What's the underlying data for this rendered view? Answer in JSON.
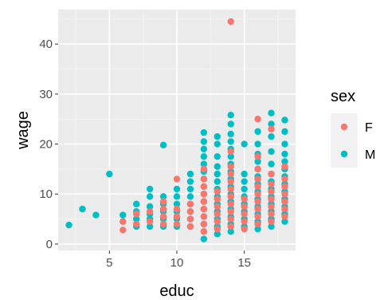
{
  "colors": {
    "panel_bg": "#ebebeb",
    "grid_major": "#ffffff",
    "grid_minor": "#f4f4f4",
    "tick_text": "#4d4d4d",
    "F": "#f8766d",
    "M": "#00bfc4"
  },
  "chart_data": {
    "type": "scatter",
    "title": "",
    "xlabel": "educ",
    "ylabel": "wage",
    "xlim": [
      1.2,
      18.8
    ],
    "ylim": [
      -1.3,
      46.9
    ],
    "x_ticks": [
      5,
      10,
      15
    ],
    "x_tick_labels": [
      "5",
      "10",
      "15"
    ],
    "y_ticks": [
      0,
      10,
      20,
      30,
      40
    ],
    "y_tick_labels": [
      "0",
      "10",
      "20",
      "30",
      "40"
    ],
    "grid": true,
    "legend": {
      "title": "sex",
      "position": "right"
    },
    "series": [
      {
        "name": "M",
        "color": "#00bfc4",
        "points": [
          [
            2,
            3.8
          ],
          [
            3,
            7.0
          ],
          [
            4,
            5.8
          ],
          [
            5,
            14.0
          ],
          [
            6,
            4.5
          ],
          [
            6,
            5.8
          ],
          [
            7,
            3.5
          ],
          [
            7,
            5.0
          ],
          [
            7,
            6.5
          ],
          [
            7,
            8.0
          ],
          [
            8,
            3.5
          ],
          [
            8,
            5.0
          ],
          [
            8,
            6.0
          ],
          [
            8,
            7.5
          ],
          [
            8,
            9.5
          ],
          [
            8,
            11.0
          ],
          [
            9,
            3.5
          ],
          [
            9,
            5.0
          ],
          [
            9,
            6.5
          ],
          [
            9,
            8.0
          ],
          [
            9,
            9.5
          ],
          [
            9,
            19.8
          ],
          [
            10,
            3.5
          ],
          [
            10,
            5.0
          ],
          [
            10,
            6.5
          ],
          [
            10,
            8.0
          ],
          [
            10,
            9.5
          ],
          [
            10,
            11.0
          ],
          [
            11,
            3.5
          ],
          [
            11,
            5.0
          ],
          [
            11,
            6.5
          ],
          [
            11,
            8.0
          ],
          [
            11,
            9.5
          ],
          [
            11,
            11.0
          ],
          [
            11,
            12.5
          ],
          [
            11,
            14.0
          ],
          [
            12,
            1.0
          ],
          [
            12,
            2.5
          ],
          [
            12,
            4.0
          ],
          [
            12,
            5.5
          ],
          [
            12,
            7.0
          ],
          [
            12,
            8.5
          ],
          [
            12,
            10.0
          ],
          [
            12,
            11.5
          ],
          [
            12,
            13.0
          ],
          [
            12,
            14.5
          ],
          [
            12,
            16.0
          ],
          [
            12,
            17.5
          ],
          [
            12,
            19.0
          ],
          [
            12,
            20.5
          ],
          [
            12,
            22.3
          ],
          [
            13,
            2.0
          ],
          [
            13,
            3.5
          ],
          [
            13,
            5.0
          ],
          [
            13,
            6.5
          ],
          [
            13,
            8.0
          ],
          [
            13,
            9.5
          ],
          [
            13,
            11.0
          ],
          [
            13,
            12.5
          ],
          [
            13,
            14.0
          ],
          [
            13,
            15.5
          ],
          [
            13,
            17.5
          ],
          [
            13,
            20.0
          ],
          [
            13,
            21.5
          ],
          [
            14,
            2.5
          ],
          [
            14,
            4.0
          ],
          [
            14,
            5.5
          ],
          [
            14,
            7.0
          ],
          [
            14,
            8.5
          ],
          [
            14,
            10.0
          ],
          [
            14,
            11.5
          ],
          [
            14,
            13.0
          ],
          [
            14,
            14.5
          ],
          [
            14,
            16.0
          ],
          [
            14,
            17.5
          ],
          [
            14,
            19.0
          ],
          [
            14,
            20.5
          ],
          [
            14,
            22.0
          ],
          [
            14,
            24.0
          ],
          [
            14,
            25.8
          ],
          [
            15,
            3.5
          ],
          [
            15,
            5.0
          ],
          [
            15,
            6.5
          ],
          [
            15,
            8.0
          ],
          [
            15,
            9.5
          ],
          [
            15,
            11.0
          ],
          [
            15,
            12.5
          ],
          [
            15,
            14.0
          ],
          [
            15,
            20.0
          ],
          [
            16,
            3.0
          ],
          [
            16,
            4.5
          ],
          [
            16,
            6.0
          ],
          [
            16,
            7.5
          ],
          [
            16,
            9.0
          ],
          [
            16,
            10.5
          ],
          [
            16,
            12.0
          ],
          [
            16,
            13.5
          ],
          [
            16,
            15.0
          ],
          [
            16,
            16.5
          ],
          [
            16,
            18.0
          ],
          [
            16,
            20.0
          ],
          [
            16,
            22.5
          ],
          [
            17,
            3.5
          ],
          [
            17,
            5.0
          ],
          [
            17,
            6.5
          ],
          [
            17,
            8.0
          ],
          [
            17,
            9.5
          ],
          [
            17,
            11.0
          ],
          [
            17,
            12.5
          ],
          [
            17,
            14.0
          ],
          [
            17,
            16.0
          ],
          [
            17,
            18.5
          ],
          [
            17,
            21.5
          ],
          [
            17,
            24.0
          ],
          [
            17,
            26.2
          ],
          [
            18,
            4.5
          ],
          [
            18,
            6.0
          ],
          [
            18,
            7.5
          ],
          [
            18,
            9.0
          ],
          [
            18,
            10.5
          ],
          [
            18,
            12.0
          ],
          [
            18,
            13.5
          ],
          [
            18,
            15.0
          ],
          [
            18,
            16.5
          ],
          [
            18,
            18.0
          ],
          [
            18,
            20.0
          ],
          [
            18,
            22.5
          ],
          [
            18,
            24.8
          ]
        ]
      },
      {
        "name": "F",
        "color": "#f8766d",
        "points": [
          [
            6,
            2.8
          ],
          [
            6,
            4.5
          ],
          [
            7,
            4.0
          ],
          [
            7,
            6.0
          ],
          [
            8,
            4.5
          ],
          [
            8,
            6.5
          ],
          [
            9,
            4.0
          ],
          [
            9,
            5.5
          ],
          [
            9,
            7.0
          ],
          [
            9,
            8.5
          ],
          [
            10,
            4.0
          ],
          [
            10,
            5.5
          ],
          [
            10,
            7.0
          ],
          [
            10,
            13.0
          ],
          [
            11,
            3.5
          ],
          [
            11,
            5.0
          ],
          [
            11,
            6.5
          ],
          [
            11,
            8.0
          ],
          [
            12,
            2.5
          ],
          [
            12,
            4.0
          ],
          [
            12,
            5.5
          ],
          [
            12,
            7.0
          ],
          [
            12,
            8.5
          ],
          [
            12,
            10.0
          ],
          [
            12,
            11.5
          ],
          [
            12,
            13.0
          ],
          [
            12,
            15.0
          ],
          [
            13,
            3.0
          ],
          [
            13,
            4.5
          ],
          [
            13,
            6.0
          ],
          [
            13,
            7.5
          ],
          [
            13,
            9.0
          ],
          [
            13,
            10.5
          ],
          [
            14,
            3.5
          ],
          [
            14,
            5.0
          ],
          [
            14,
            6.5
          ],
          [
            14,
            8.0
          ],
          [
            14,
            9.5
          ],
          [
            14,
            11.0
          ],
          [
            14,
            12.5
          ],
          [
            14,
            14.0
          ],
          [
            14,
            15.5
          ],
          [
            14,
            18.5
          ],
          [
            14,
            44.5
          ],
          [
            15,
            3.0
          ],
          [
            15,
            4.5
          ],
          [
            15,
            6.0
          ],
          [
            15,
            7.5
          ],
          [
            15,
            9.0
          ],
          [
            16,
            4.0
          ],
          [
            16,
            5.5
          ],
          [
            16,
            7.0
          ],
          [
            16,
            8.5
          ],
          [
            16,
            10.0
          ],
          [
            16,
            11.5
          ],
          [
            16,
            13.0
          ],
          [
            16,
            15.0
          ],
          [
            16,
            17.5
          ],
          [
            16,
            25.0
          ],
          [
            17,
            4.5
          ],
          [
            17,
            6.0
          ],
          [
            17,
            7.5
          ],
          [
            17,
            9.0
          ],
          [
            17,
            10.5
          ],
          [
            17,
            12.0
          ],
          [
            17,
            14.0
          ],
          [
            17,
            23.0
          ],
          [
            18,
            5.5
          ],
          [
            18,
            7.0
          ],
          [
            18,
            8.5
          ],
          [
            18,
            10.0
          ],
          [
            18,
            11.5
          ],
          [
            18,
            13.0
          ],
          [
            18,
            15.5
          ]
        ]
      }
    ]
  }
}
